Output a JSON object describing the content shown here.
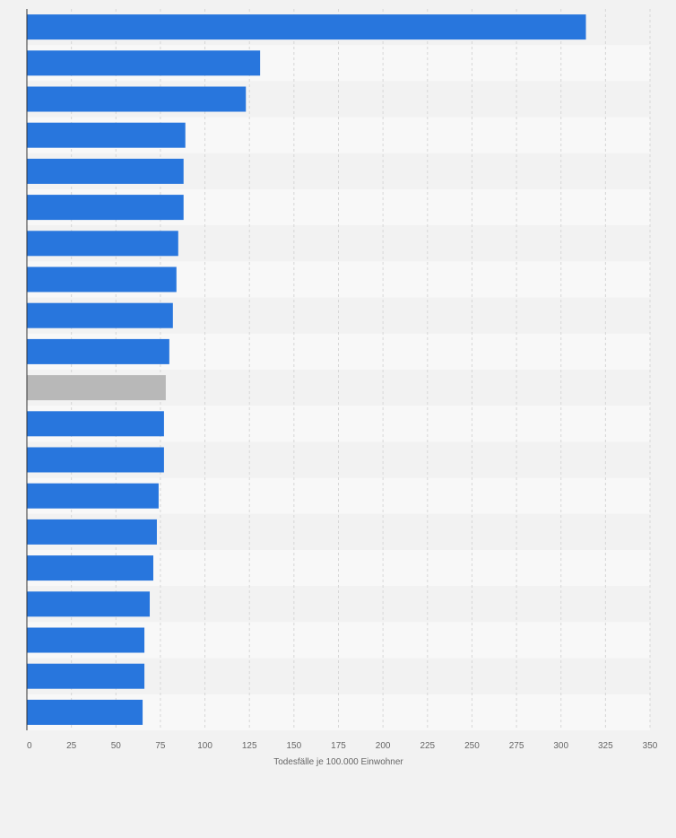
{
  "chart_data": {
    "type": "bar",
    "orientation": "horizontal",
    "categories": [
      "",
      "",
      "",
      "",
      "",
      "",
      "",
      "",
      "",
      "",
      "",
      "",
      "",
      "",
      "",
      "",
      "",
      "",
      "",
      ""
    ],
    "values": [
      314,
      131,
      123,
      89,
      88,
      88,
      85,
      84,
      82,
      80,
      78,
      77,
      77,
      74,
      73,
      71,
      69,
      66,
      66,
      65
    ],
    "highlight_index": 10,
    "xlabel": "Todesfälle je 100.000 Einwohner",
    "xlim": [
      0,
      350
    ],
    "xticks": [
      0,
      25,
      50,
      75,
      100,
      125,
      150,
      175,
      200,
      225,
      250,
      275,
      300,
      325,
      350
    ],
    "grid": true,
    "colors": {
      "bar": "#2876dd",
      "highlight": "#b8b8b8",
      "background": "#f2f2f2",
      "band_light": "#f8f8f8",
      "band_dark": "#f2f2f2",
      "grid": "#d6d6d6",
      "axis": "#333333",
      "tick_text": "#666666"
    }
  }
}
